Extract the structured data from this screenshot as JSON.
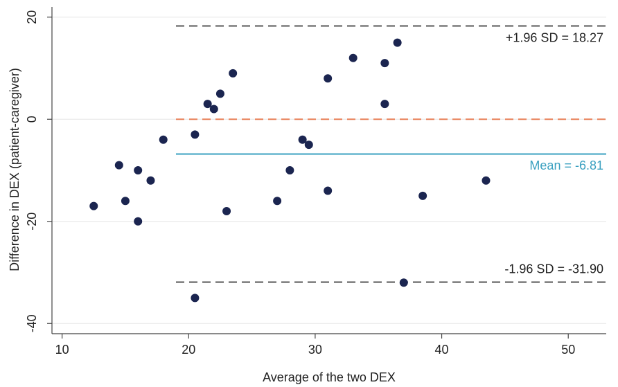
{
  "chart_data": {
    "type": "scatter",
    "x_label": "Average of the two DEX",
    "y_label": "Difference in DEX (patient-caregiver)",
    "xlim": [
      9.2,
      53
    ],
    "ylim": [
      -42,
      22
    ],
    "xticks": [
      10,
      20,
      30,
      40,
      50
    ],
    "yticks": [
      -40,
      -20,
      0,
      20
    ],
    "grid": true,
    "color": "#1b2550",
    "x": [
      12.5,
      14.5,
      15,
      16,
      16,
      17,
      18,
      20.5,
      20.5,
      21.5,
      22,
      22.5,
      23,
      23.5,
      27,
      28,
      29,
      29.5,
      31,
      31,
      33,
      35.5,
      35.5,
      36.5,
      37,
      38.5,
      43.5
    ],
    "values": [
      -17,
      -9,
      -16,
      -10,
      -20,
      -12,
      -4,
      -3,
      -35,
      3,
      2,
      5,
      -18,
      9,
      -16,
      -10,
      -4,
      -5,
      8,
      -14,
      12,
      11,
      3,
      15,
      -32,
      -15,
      -12
    ],
    "reference_lines": [
      {
        "value": 18.27,
        "label": "+1.96 SD = 18.27",
        "color": "#555555",
        "dashed": true,
        "x_start": 19
      },
      {
        "value": 0,
        "color": "#e8825a",
        "dashed": true,
        "x_start": 19
      },
      {
        "value": -6.81,
        "label": "Mean = -6.81",
        "color": "#3aa0c0",
        "dashed": false,
        "x_start": 19
      },
      {
        "value": -31.9,
        "label": "-1.96 SD = -31.90",
        "color": "#555555",
        "dashed": true,
        "x_start": 19
      }
    ]
  }
}
